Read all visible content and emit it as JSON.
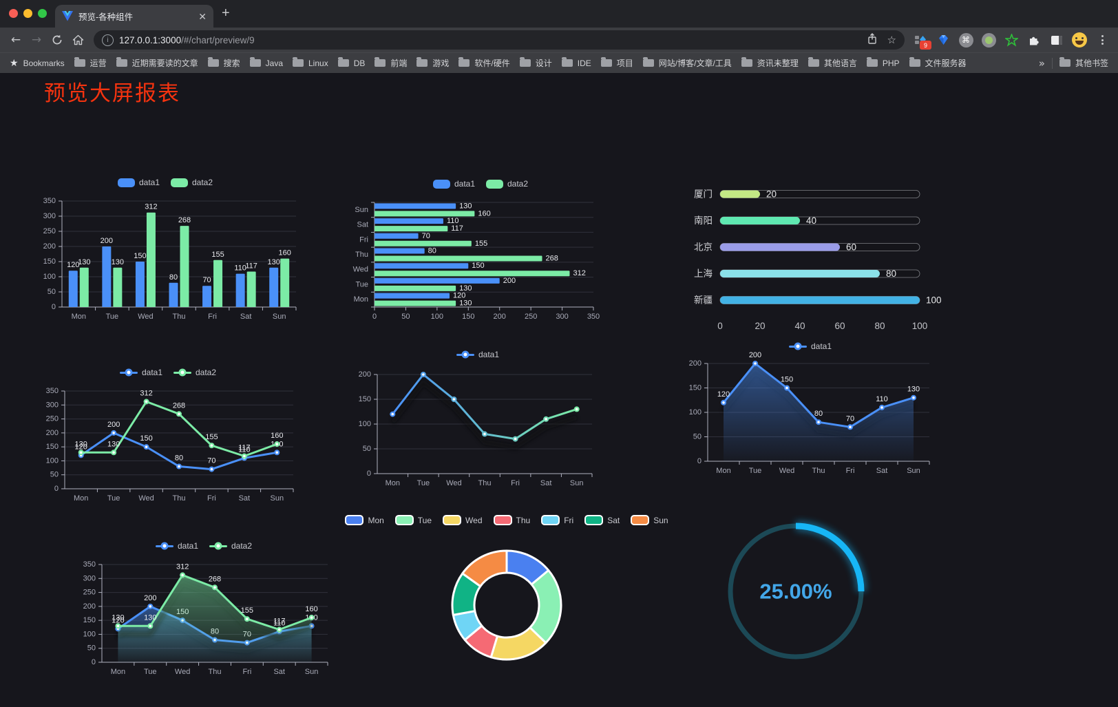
{
  "browser": {
    "tab_title": "预览-各种组件",
    "url_host": "127.0.0.1:3000",
    "url_path": "/#/chart/preview/9",
    "bookmarks_bar_label": "Bookmarks",
    "bookmarks": [
      "运营",
      "近期需要读的文章",
      "搜索",
      "Java",
      "Linux",
      "DB",
      "前端",
      "游戏",
      "软件/硬件",
      "设计",
      "IDE",
      "项目",
      "网站/博客/文章/工具",
      "资讯未整理",
      "其他语言",
      "PHP",
      "文件服务器"
    ],
    "overflow_chevron": "»",
    "other_bookmarks": "其他书签",
    "devtools_badge": "9"
  },
  "page": {
    "title": "预览大屏报表"
  },
  "chart_data": [
    {
      "id": "c1",
      "type": "bar",
      "title": "",
      "categories": [
        "Mon",
        "Tue",
        "Wed",
        "Thu",
        "Fri",
        "Sat",
        "Sun"
      ],
      "ylim": [
        0,
        350
      ],
      "ytick": 50,
      "legend_position": "top",
      "grid": true,
      "series": [
        {
          "name": "data1",
          "color": "#4a90f8",
          "values": [
            120,
            200,
            150,
            80,
            70,
            110,
            130
          ],
          "labels": true
        },
        {
          "name": "data2",
          "color": "#7ceba6",
          "values": [
            130,
            130,
            312,
            268,
            155,
            117,
            160
          ],
          "labels": true
        }
      ]
    },
    {
      "id": "c2",
      "type": "bar-horizontal",
      "categories": [
        "Mon",
        "Tue",
        "Wed",
        "Thu",
        "Fri",
        "Sat",
        "Sun"
      ],
      "xlim": [
        0,
        350
      ],
      "xtick": 50,
      "legend_position": "top",
      "grid": true,
      "series": [
        {
          "name": "data1",
          "color": "#4a90f8",
          "values": [
            120,
            200,
            150,
            80,
            70,
            110,
            130
          ],
          "labels": true
        },
        {
          "name": "data2",
          "color": "#7ceba6",
          "values": [
            130,
            130,
            312,
            268,
            155,
            117,
            160
          ],
          "labels": true
        }
      ]
    },
    {
      "id": "c3",
      "type": "progress-bars",
      "categories": [
        "厦门",
        "南阳",
        "北京",
        "上海",
        "新疆"
      ],
      "values": [
        20,
        40,
        60,
        80,
        100
      ],
      "colors": [
        "#c3e884",
        "#5fe8b1",
        "#9a9ce8",
        "#8ae0e8",
        "#42b2e5"
      ],
      "xlim": [
        0,
        100
      ],
      "xticks": [
        0,
        20,
        40,
        60,
        80,
        100
      ]
    },
    {
      "id": "c4",
      "type": "line",
      "categories": [
        "Mon",
        "Tue",
        "Wed",
        "Thu",
        "Fri",
        "Sat",
        "Sun"
      ],
      "ylim": [
        0,
        350
      ],
      "ytick": 50,
      "legend_position": "top",
      "grid": true,
      "series": [
        {
          "name": "data1",
          "color": "#4a90f8",
          "values": [
            120,
            200,
            150,
            80,
            70,
            110,
            130
          ],
          "labels": true
        },
        {
          "name": "data2",
          "color": "#7ceba6",
          "values": [
            130,
            130,
            312,
            268,
            155,
            117,
            160
          ],
          "labels": true
        }
      ]
    },
    {
      "id": "c5",
      "type": "line",
      "categories": [
        "Mon",
        "Tue",
        "Wed",
        "Thu",
        "Fri",
        "Sat",
        "Sun"
      ],
      "ylim": [
        0,
        200
      ],
      "ytick": 50,
      "legend_position": "top",
      "grid": true,
      "series": [
        {
          "name": "data1",
          "color": "#4a90f8",
          "gradient": [
            "#4a90f8",
            "#7ceba6"
          ],
          "shadow": true,
          "values": [
            120,
            200,
            150,
            80,
            70,
            110,
            130
          ],
          "labels": false
        }
      ]
    },
    {
      "id": "c6",
      "type": "line",
      "categories": [
        "Mon",
        "Tue",
        "Wed",
        "Thu",
        "Fri",
        "Sat",
        "Sun"
      ],
      "ylim": [
        0,
        200
      ],
      "ytick": 50,
      "legend_position": "top",
      "grid": true,
      "series": [
        {
          "name": "data1",
          "color": "#4a90f8",
          "area": true,
          "shadow": true,
          "values": [
            120,
            200,
            150,
            80,
            70,
            110,
            130
          ],
          "labels": true
        }
      ]
    },
    {
      "id": "c7",
      "type": "line",
      "categories": [
        "Mon",
        "Tue",
        "Wed",
        "Thu",
        "Fri",
        "Sat",
        "Sun"
      ],
      "ylim": [
        0,
        350
      ],
      "ytick": 50,
      "legend_position": "top",
      "grid": true,
      "series": [
        {
          "name": "data1",
          "color": "#4a90f8",
          "area": true,
          "shadow": true,
          "values": [
            120,
            200,
            150,
            80,
            70,
            110,
            130
          ],
          "labels": true
        },
        {
          "name": "data2",
          "color": "#7ceba6",
          "area": true,
          "shadow": true,
          "values": [
            130,
            130,
            312,
            268,
            155,
            117,
            160
          ],
          "labels": true
        }
      ]
    },
    {
      "id": "c8",
      "type": "pie",
      "categories": [
        "Mon",
        "Tue",
        "Wed",
        "Thu",
        "Fri",
        "Sat",
        "Sun"
      ],
      "values": [
        120,
        200,
        150,
        80,
        70,
        110,
        130
      ],
      "colors": [
        "#4a80f0",
        "#8af0b4",
        "#f5d763",
        "#f56a74",
        "#6fd5f5",
        "#10b385",
        "#f58b44"
      ],
      "legend_position": "top",
      "inner_radius": 47,
      "outer_radius": 79
    },
    {
      "id": "c9",
      "type": "gauge",
      "value": 25,
      "label": "25.00%",
      "color": "#17b6f6",
      "track_color": "#1c4956",
      "text_color": "#43a7e9"
    }
  ]
}
